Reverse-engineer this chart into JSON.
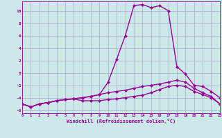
{
  "x": [
    0,
    1,
    2,
    3,
    4,
    5,
    6,
    7,
    8,
    9,
    10,
    11,
    12,
    13,
    14,
    15,
    16,
    17,
    18,
    19,
    20,
    21,
    22,
    23
  ],
  "curve1": [
    -5.0,
    -5.5,
    -5.0,
    -4.8,
    -4.5,
    -4.3,
    -4.2,
    -4.5,
    -4.5,
    -4.5,
    -4.3,
    -4.2,
    -4.0,
    -3.8,
    -3.6,
    -3.2,
    -2.7,
    -2.2,
    -2.0,
    -2.2,
    -3.0,
    -3.5,
    -4.0,
    -5.0
  ],
  "curve2": [
    -5.0,
    -5.5,
    -5.0,
    -4.8,
    -4.5,
    -4.3,
    -4.2,
    -4.0,
    -3.8,
    -3.5,
    -1.5,
    2.2,
    6.0,
    10.8,
    11.0,
    10.5,
    10.8,
    10.0,
    1.0,
    -0.2,
    -2.0,
    -2.2,
    -3.0,
    -4.0
  ],
  "curve3": [
    -5.0,
    -5.5,
    -5.0,
    -4.8,
    -4.5,
    -4.3,
    -4.2,
    -4.0,
    -3.8,
    -3.5,
    -3.2,
    -3.0,
    -2.8,
    -2.5,
    -2.2,
    -2.0,
    -1.8,
    -1.5,
    -1.2,
    -1.5,
    -2.5,
    -3.2,
    -3.8,
    -5.0
  ],
  "line_color": "#990099",
  "bg_color": "#cce8e8",
  "grid_color": "#aaaacc",
  "xlabel": "Windchill (Refroidissement éolien,°C)",
  "xlim": [
    0,
    23
  ],
  "ylim": [
    -6.5,
    11.5
  ],
  "yticks": [
    -6,
    -4,
    -2,
    0,
    2,
    4,
    6,
    8,
    10
  ],
  "xticks": [
    0,
    1,
    2,
    3,
    4,
    5,
    6,
    7,
    8,
    9,
    10,
    11,
    12,
    13,
    14,
    15,
    16,
    17,
    18,
    19,
    20,
    21,
    22,
    23
  ],
  "markersize": 2.5,
  "linewidth": 1.0
}
